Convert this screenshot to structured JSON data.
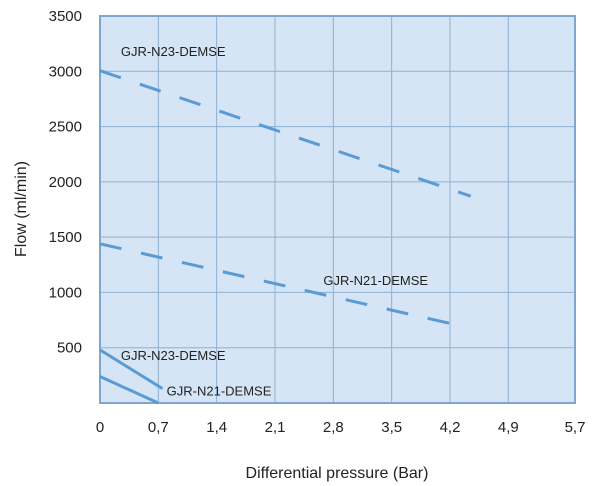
{
  "chart_data": {
    "type": "line",
    "title": "",
    "xlabel": "Differential pressure (Bar)",
    "ylabel": "Flow (ml/min)",
    "xlim": [
      0,
      5.7
    ],
    "ylim": [
      0,
      3500
    ],
    "x_ticks": [
      "0",
      "0,7",
      "1,4",
      "2,1",
      "2,8",
      "3,5",
      "4,2",
      "4,9",
      "5,7"
    ],
    "x_tick_values": [
      0,
      0.7,
      1.4,
      2.1,
      2.8,
      3.5,
      4.2,
      4.9,
      5.7
    ],
    "y_ticks": [
      "500",
      "1000",
      "1500",
      "2000",
      "2500",
      "3000",
      "3500"
    ],
    "y_tick_values": [
      500,
      1000,
      1500,
      2000,
      2500,
      3000,
      3500
    ],
    "grid": true,
    "legend": "none",
    "colors": {
      "plot_background": "#d5e5f5",
      "grid": "#8fb0d0",
      "frame": "#7fa6cc",
      "series": "#5b9bd5"
    },
    "series": [
      {
        "name": "GJR-N23-DEMSE",
        "style": "dashed",
        "x": [
          0,
          4.45
        ],
        "values": [
          3005,
          1870
        ]
      },
      {
        "name": "GJR-N21-DEMSE",
        "style": "dashed",
        "x": [
          0,
          4.2
        ],
        "values": [
          1440,
          720
        ]
      },
      {
        "name": "GJR-N23-DEMSE",
        "style": "solid",
        "x": [
          0,
          0.75
        ],
        "values": [
          480,
          130
        ]
      },
      {
        "name": "GJR-N21-DEMSE",
        "style": "solid",
        "x": [
          0,
          0.7
        ],
        "values": [
          240,
          0
        ]
      }
    ],
    "annotations": [
      {
        "text": "GJR-N23-DEMSE",
        "x": 0.25,
        "y": 3140
      },
      {
        "text": "GJR-N21-DEMSE",
        "x": 2.68,
        "y": 1065
      },
      {
        "text": "GJR-N23-DEMSE",
        "x": 0.25,
        "y": 390
      },
      {
        "text": "GJR-N21-DEMSE",
        "x": 0.8,
        "y": 70
      }
    ]
  }
}
